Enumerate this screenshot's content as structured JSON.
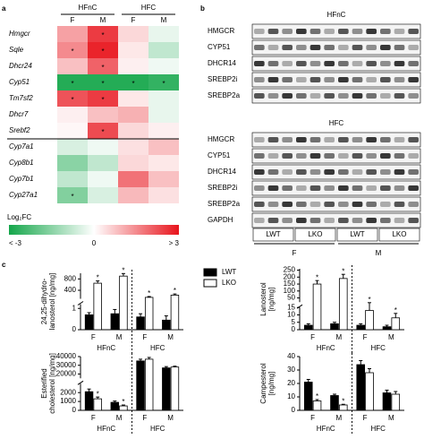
{
  "panel_labels": [
    "a",
    "b",
    "c"
  ],
  "chart_data": [
    {
      "type": "heatmap",
      "column_groups": [
        "HFnC",
        "HFC"
      ],
      "columns": [
        "F",
        "M",
        "F",
        "M"
      ],
      "rows": [
        "Hmgcr",
        "Sqle",
        "Dhcr24",
        "Cyp51",
        "Tm7sf2",
        "Dhcr7",
        "Srebf2",
        "Cyp7a1",
        "Cyp8b1",
        "Cyp7b1",
        "Cyp27a1"
      ],
      "values": [
        [
          1.2,
          2.5,
          0.5,
          -0.3
        ],
        [
          1.5,
          2.8,
          0.3,
          -0.8
        ],
        [
          0.8,
          2.0,
          0.2,
          -0.2
        ],
        [
          -2.8,
          -2.8,
          -2.8,
          -2.6
        ],
        [
          2.2,
          2.5,
          0.3,
          -0.3
        ],
        [
          0.2,
          0.8,
          1.0,
          -0.3
        ],
        [
          0.1,
          2.3,
          0.5,
          0.2
        ],
        [
          -0.5,
          -0.2,
          0.4,
          0.8
        ],
        [
          -1.5,
          -0.8,
          0.5,
          0.3
        ],
        [
          -0.8,
          -0.2,
          1.8,
          0.8
        ],
        [
          -1.6,
          -0.5,
          0.9,
          0.4
        ]
      ],
      "significant": [
        [
          false,
          true,
          false,
          false
        ],
        [
          true,
          true,
          false,
          false
        ],
        [
          false,
          true,
          false,
          false
        ],
        [
          true,
          true,
          true,
          true
        ],
        [
          true,
          true,
          false,
          false
        ],
        [
          false,
          false,
          false,
          false
        ],
        [
          false,
          true,
          false,
          false
        ],
        [
          false,
          false,
          false,
          false
        ],
        [
          false,
          false,
          false,
          false
        ],
        [
          false,
          false,
          false,
          false
        ],
        [
          true,
          false,
          false,
          false
        ]
      ],
      "sig_label": "*",
      "zlim": [
        -3,
        3
      ],
      "colors": {
        "low": "#14a64a",
        "mid": "#ffffff",
        "high": "#e8141c"
      },
      "colorbar_title": "Log₂FC",
      "colorbar_ticks": [
        {
          "value": -3,
          "label": "< -3"
        },
        0,
        {
          "value": 3,
          "label": "> 3"
        }
      ]
    },
    {
      "type": "bar",
      "ylabel": [
        "24,25-dihydro-",
        "lanosterol [ng/mg]"
      ],
      "categories": [
        "F",
        "M",
        "F",
        "M"
      ],
      "groups": [
        "HFnC",
        "HFC"
      ],
      "segments": [
        {
          "ylim": [
            0,
            1.2
          ],
          "yticks": [
            0,
            1
          ]
        },
        {
          "ylim": [
            100,
            1000
          ],
          "yticks": [
            400,
            800
          ]
        }
      ],
      "sig_label": "*",
      "series": [
        {
          "name": "LWT",
          "color": "#000000",
          "values": [
            0.7,
            0.75,
            0.6,
            0.45
          ],
          "errors": [
            0.1,
            0.2,
            0.15,
            0.2
          ],
          "significant": [
            false,
            false,
            false,
            false
          ]
        },
        {
          "name": "LKO",
          "color": "#ffffff",
          "values": [
            650,
            900,
            150,
            230
          ],
          "errors": [
            80,
            90,
            30,
            40
          ],
          "significant": [
            true,
            true,
            true,
            true
          ]
        }
      ]
    },
    {
      "type": "bar",
      "ylabel": [
        "Lanosterol",
        "[ng/mg]"
      ],
      "categories": [
        "F",
        "M",
        "F",
        "M"
      ],
      "groups": [
        "HFnC",
        "HFC"
      ],
      "segments": [
        {
          "ylim": [
            0,
            15
          ],
          "yticks": [
            0,
            5,
            10,
            15
          ]
        },
        {
          "ylim": [
            20,
            260
          ],
          "yticks": [
            50,
            100,
            150,
            200,
            250
          ]
        }
      ],
      "sig_label": "*",
      "series": [
        {
          "color": "#000000",
          "values": [
            3,
            4,
            3,
            2
          ],
          "errors": [
            1,
            1,
            1,
            1
          ],
          "significant": [
            false,
            false,
            false,
            false
          ]
        },
        {
          "color": "#ffffff",
          "values": [
            150,
            190,
            13,
            8
          ],
          "errors": [
            25,
            30,
            3,
            3
          ],
          "significant": [
            true,
            true,
            true,
            true
          ]
        }
      ]
    },
    {
      "type": "bar",
      "ylabel": [
        "Esterified",
        "cholesterol [ng/mg]"
      ],
      "categories": [
        "F",
        "M",
        "F",
        "M"
      ],
      "groups": [
        "HFnC",
        "HFC"
      ],
      "segments": [
        {
          "ylim": [
            0,
            3000
          ],
          "yticks": [
            0,
            1000,
            2000
          ]
        },
        {
          "ylim": [
            15000,
            40000
          ],
          "yticks": [
            20000,
            30000,
            40000
          ]
        }
      ],
      "sig_label": "*",
      "series": [
        {
          "color": "#000000",
          "values": [
            2100,
            900,
            35000,
            27000
          ],
          "errors": [
            300,
            150,
            2000,
            1500
          ],
          "significant": [
            false,
            false,
            false,
            false
          ]
        },
        {
          "color": "#ffffff",
          "values": [
            1300,
            500,
            37000,
            28000
          ],
          "errors": [
            200,
            100,
            2000,
            1000
          ],
          "significant": [
            true,
            true,
            false,
            false
          ]
        }
      ]
    },
    {
      "type": "bar",
      "ylabel": [
        "Campesterol",
        "[ng/mg]"
      ],
      "categories": [
        "F",
        "M",
        "F",
        "M"
      ],
      "groups": [
        "HFnC",
        "HFC"
      ],
      "segments": [
        {
          "ylim": [
            0,
            40
          ],
          "yticks": [
            0,
            10,
            20,
            30,
            40
          ]
        }
      ],
      "sig_label": "*",
      "series": [
        {
          "color": "#000000",
          "values": [
            21,
            11,
            34,
            13
          ],
          "errors": [
            2,
            1,
            3,
            2
          ],
          "significant": [
            false,
            false,
            false,
            false
          ]
        },
        {
          "color": "#ffffff",
          "values": [
            7,
            4,
            28,
            12
          ],
          "errors": [
            1,
            0.5,
            3,
            2
          ],
          "significant": [
            true,
            true,
            false,
            false
          ]
        }
      ]
    }
  ],
  "blot": {
    "sections": [
      {
        "title": "HFnC",
        "bands": [
          "HMGCR",
          "CYP51",
          "DHCR14",
          "SREBP2i",
          "SREBP2a"
        ]
      },
      {
        "title": "HFC",
        "bands": [
          "HMGCR",
          "CYP51",
          "DHCR14",
          "SREBP2i",
          "SREBP2a",
          "GAPDH"
        ]
      }
    ],
    "lanes": [
      "LWT",
      "LKO",
      "LWT",
      "LKO"
    ],
    "sexes": [
      "F",
      "M"
    ]
  }
}
